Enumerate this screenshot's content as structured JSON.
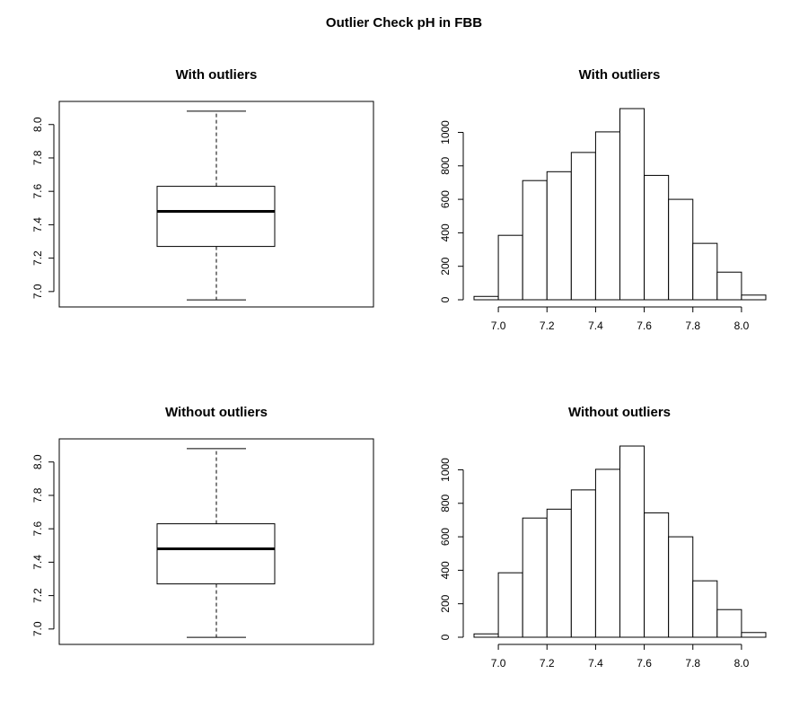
{
  "figure_title": "Outlier Check pH in FBB",
  "chart_data": [
    {
      "type": "box",
      "title": "With outliers",
      "stats": {
        "min": 6.95,
        "q1": 7.27,
        "median": 7.48,
        "q3": 7.63,
        "max": 8.08
      },
      "ylim": [
        6.94,
        8.09
      ],
      "yticks": [
        7.0,
        7.2,
        7.4,
        7.6,
        7.8,
        8.0
      ],
      "ytick_labels": [
        "7.0",
        "7.2",
        "7.4",
        "7.6",
        "7.8",
        "8.0"
      ]
    },
    {
      "type": "bar",
      "title": "With outliers",
      "bins": [
        6.9,
        7.0,
        7.1,
        7.2,
        7.3,
        7.4,
        7.5,
        7.6,
        7.7,
        7.8,
        7.9,
        8.0,
        8.1
      ],
      "counts": [
        20,
        385,
        712,
        765,
        880,
        1003,
        1142,
        743,
        600,
        337,
        165,
        28
      ],
      "xlim": [
        6.9,
        8.1
      ],
      "ylim": [
        0,
        1142
      ],
      "xticks": [
        7.0,
        7.2,
        7.4,
        7.6,
        7.8,
        8.0
      ],
      "xtick_labels": [
        "7.0",
        "7.2",
        "7.4",
        "7.6",
        "7.8",
        "8.0"
      ],
      "yticks": [
        0,
        200,
        400,
        600,
        800,
        1000
      ],
      "ytick_labels": [
        "0",
        "200",
        "400",
        "600",
        "800",
        "1000"
      ]
    },
    {
      "type": "box",
      "title": "Without outliers",
      "stats": {
        "min": 6.95,
        "q1": 7.27,
        "median": 7.48,
        "q3": 7.63,
        "max": 8.08
      },
      "ylim": [
        6.94,
        8.09
      ],
      "yticks": [
        7.0,
        7.2,
        7.4,
        7.6,
        7.8,
        8.0
      ],
      "ytick_labels": [
        "7.0",
        "7.2",
        "7.4",
        "7.6",
        "7.8",
        "8.0"
      ]
    },
    {
      "type": "bar",
      "title": "Without outliers",
      "bins": [
        6.9,
        7.0,
        7.1,
        7.2,
        7.3,
        7.4,
        7.5,
        7.6,
        7.7,
        7.8,
        7.9,
        8.0,
        8.1
      ],
      "counts": [
        20,
        385,
        712,
        765,
        880,
        1003,
        1142,
        743,
        600,
        337,
        165,
        28
      ],
      "xlim": [
        6.9,
        8.1
      ],
      "ylim": [
        0,
        1142
      ],
      "xticks": [
        7.0,
        7.2,
        7.4,
        7.6,
        7.8,
        8.0
      ],
      "xtick_labels": [
        "7.0",
        "7.2",
        "7.4",
        "7.6",
        "7.8",
        "8.0"
      ],
      "yticks": [
        0,
        200,
        400,
        600,
        800,
        1000
      ],
      "ytick_labels": [
        "0",
        "200",
        "400",
        "600",
        "800",
        "1000"
      ]
    }
  ]
}
